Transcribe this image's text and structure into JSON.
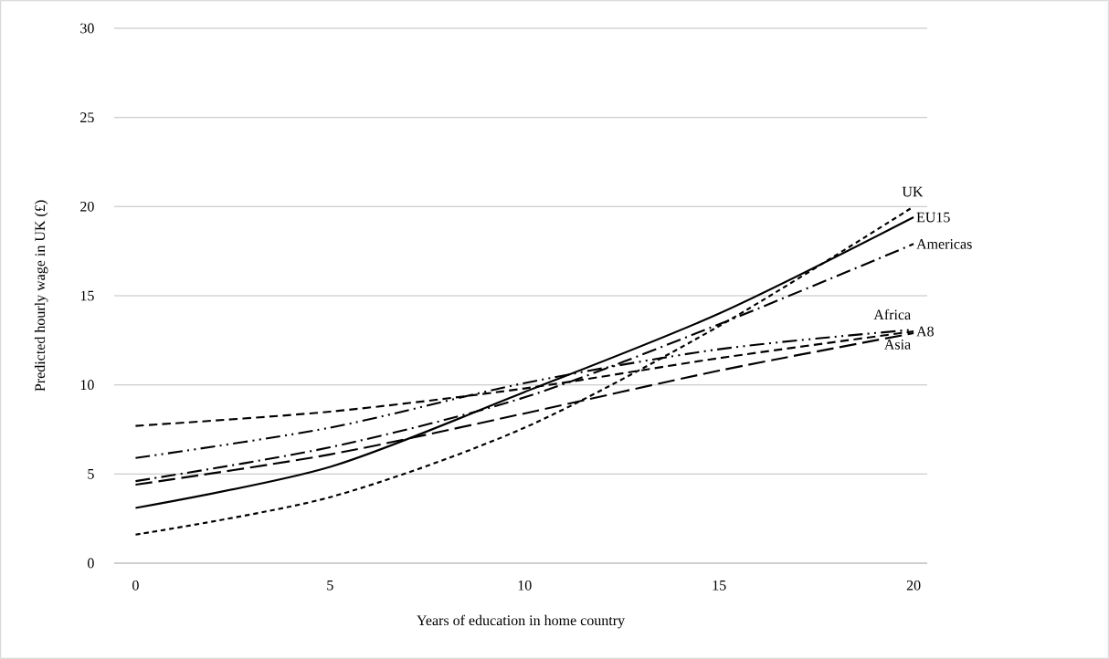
{
  "chart_data": {
    "type": "line",
    "xlabel": "Years of education in home country",
    "ylabel": "Predicted hourly wage in UK (£)",
    "x": [
      0,
      5,
      10,
      15,
      20
    ],
    "xlim": [
      -0.55,
      20.35
    ],
    "ylim": [
      0,
      30
    ],
    "xticks": [
      0,
      5,
      10,
      15,
      20
    ],
    "yticks": [
      0,
      5,
      10,
      15,
      20,
      25,
      30
    ],
    "grid": "y",
    "marker": "none",
    "series": [
      {
        "name": "UK",
        "color": "#000000",
        "line_style": "dotted",
        "values": [
          1.6,
          3.7,
          7.6,
          13.3,
          20.0
        ]
      },
      {
        "name": "EU15",
        "color": "#000000",
        "line_style": "solid",
        "values": [
          3.1,
          5.4,
          9.6,
          14.0,
          19.4
        ]
      },
      {
        "name": "Americas",
        "color": "#000000",
        "line_style": "dashdot",
        "values": [
          4.6,
          6.5,
          9.3,
          13.4,
          17.9
        ]
      },
      {
        "name": "Africa",
        "color": "#000000",
        "line_style": "dashdotdot",
        "values": [
          5.9,
          7.6,
          10.1,
          12.0,
          13.1
        ]
      },
      {
        "name": "A8",
        "color": "#000000",
        "line_style": "dashed",
        "values": [
          7.7,
          8.5,
          9.8,
          11.5,
          13.0
        ]
      },
      {
        "name": "Asia",
        "color": "#000000",
        "line_style": "longdash",
        "values": [
          4.4,
          6.1,
          8.4,
          10.8,
          12.9
        ]
      }
    ]
  }
}
